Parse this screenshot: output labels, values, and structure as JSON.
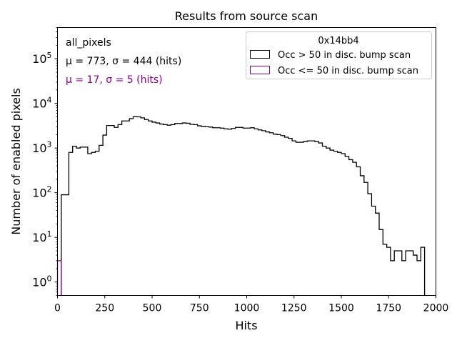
{
  "chart_data": {
    "type": "histogram",
    "title": "Results from source scan",
    "xlabel": "Hits",
    "ylabel": "Number of enabled pixels",
    "xlim": [
      0,
      2000
    ],
    "ylim": [
      0.5,
      500000
    ],
    "yscale": "log",
    "grid": false,
    "bin_width": 20,
    "x_ticks": [
      "0",
      "250",
      "500",
      "750",
      "1000",
      "1250",
      "1500",
      "1750",
      "2000"
    ],
    "y_ticks": [
      {
        "value": 1,
        "base": "10",
        "exp": "0"
      },
      {
        "value": 10,
        "base": "10",
        "exp": "1"
      },
      {
        "value": 100,
        "base": "10",
        "exp": "2"
      },
      {
        "value": 1000,
        "base": "10",
        "exp": "3"
      },
      {
        "value": 10000,
        "base": "10",
        "exp": "4"
      },
      {
        "value": 100000,
        "base": "10",
        "exp": "5"
      }
    ],
    "annotations": {
      "name": "all_pixels",
      "stats_main": "μ = 773, σ = 444 (hits)",
      "stats_low": "μ = 17, σ = 5 (hits)"
    },
    "legend": {
      "title": "0x14bb4",
      "position": "top-right"
    },
    "series": [
      {
        "name": "Occ > 50 in disc. bump scan",
        "color": "#000000",
        "bins": [
          [
            20,
            90
          ],
          [
            40,
            90
          ],
          [
            60,
            800
          ],
          [
            80,
            1100
          ],
          [
            100,
            1000
          ],
          [
            120,
            1050
          ],
          [
            140,
            1050
          ],
          [
            160,
            750
          ],
          [
            180,
            800
          ],
          [
            200,
            850
          ],
          [
            220,
            1150
          ],
          [
            240,
            1950
          ],
          [
            260,
            3200
          ],
          [
            280,
            3200
          ],
          [
            300,
            2900
          ],
          [
            320,
            3350
          ],
          [
            340,
            4050
          ],
          [
            360,
            4050
          ],
          [
            380,
            4550
          ],
          [
            400,
            5050
          ],
          [
            420,
            5000
          ],
          [
            440,
            4750
          ],
          [
            460,
            4350
          ],
          [
            480,
            4050
          ],
          [
            500,
            3800
          ],
          [
            520,
            3650
          ],
          [
            540,
            3450
          ],
          [
            560,
            3350
          ],
          [
            580,
            3250
          ],
          [
            600,
            3350
          ],
          [
            620,
            3550
          ],
          [
            640,
            3550
          ],
          [
            660,
            3650
          ],
          [
            680,
            3600
          ],
          [
            700,
            3400
          ],
          [
            720,
            3350
          ],
          [
            740,
            3150
          ],
          [
            760,
            3050
          ],
          [
            780,
            3000
          ],
          [
            800,
            2950
          ],
          [
            820,
            2850
          ],
          [
            840,
            2850
          ],
          [
            860,
            2800
          ],
          [
            880,
            2700
          ],
          [
            900,
            2650
          ],
          [
            920,
            2750
          ],
          [
            940,
            2900
          ],
          [
            960,
            2900
          ],
          [
            980,
            2800
          ],
          [
            1000,
            2800
          ],
          [
            1020,
            2850
          ],
          [
            1040,
            2700
          ],
          [
            1060,
            2550
          ],
          [
            1080,
            2450
          ],
          [
            1100,
            2300
          ],
          [
            1120,
            2200
          ],
          [
            1140,
            2050
          ],
          [
            1160,
            2000
          ],
          [
            1180,
            1900
          ],
          [
            1200,
            1750
          ],
          [
            1220,
            1650
          ],
          [
            1240,
            1450
          ],
          [
            1260,
            1350
          ],
          [
            1280,
            1350
          ],
          [
            1300,
            1400
          ],
          [
            1320,
            1450
          ],
          [
            1340,
            1450
          ],
          [
            1360,
            1400
          ],
          [
            1380,
            1300
          ],
          [
            1400,
            1100
          ],
          [
            1420,
            1000
          ],
          [
            1440,
            900
          ],
          [
            1460,
            850
          ],
          [
            1480,
            800
          ],
          [
            1500,
            750
          ],
          [
            1520,
            650
          ],
          [
            1540,
            550
          ],
          [
            1560,
            480
          ],
          [
            1580,
            380
          ],
          [
            1600,
            240
          ],
          [
            1620,
            170
          ],
          [
            1640,
            95
          ],
          [
            1660,
            50
          ],
          [
            1680,
            35
          ],
          [
            1700,
            15
          ],
          [
            1720,
            7
          ],
          [
            1740,
            6
          ],
          [
            1760,
            3
          ],
          [
            1780,
            5
          ],
          [
            1800,
            5
          ],
          [
            1820,
            3
          ],
          [
            1840,
            5
          ],
          [
            1860,
            5
          ],
          [
            1880,
            4
          ],
          [
            1900,
            3
          ],
          [
            1920,
            6
          ]
        ]
      },
      {
        "name": "Occ <= 50 in disc. bump scan",
        "color": "#8b008b",
        "bins": [
          [
            0,
            3
          ]
        ]
      }
    ]
  }
}
